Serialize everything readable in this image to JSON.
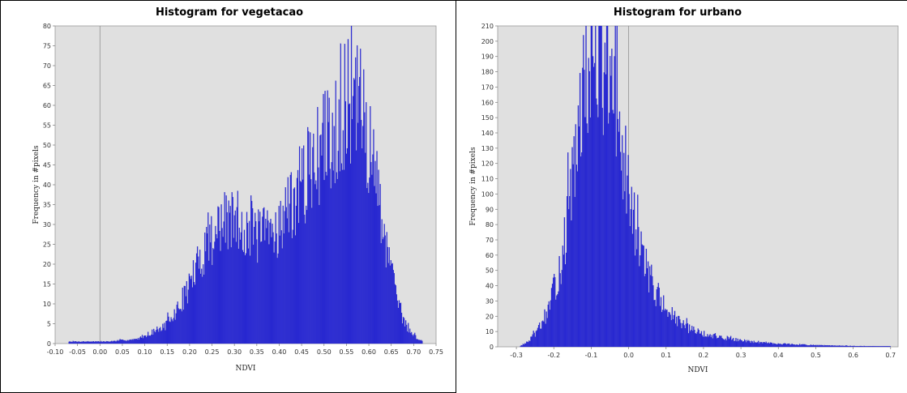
{
  "chart_data": [
    {
      "type": "bar",
      "title": "Histogram for vegetacao",
      "xlabel": "NDVI",
      "ylabel": "Frequency in #pixels",
      "xlim": [
        -0.1,
        0.75
      ],
      "ylim": [
        0,
        80
      ],
      "xticks": [
        -0.1,
        -0.05,
        0.0,
        0.05,
        0.1,
        0.15,
        0.2,
        0.25,
        0.3,
        0.35,
        0.4,
        0.45,
        0.5,
        0.55,
        0.6,
        0.65,
        0.7,
        0.75
      ],
      "xtick_labels": [
        "-0.10",
        "-0.05",
        "0.00",
        "0.05",
        "0.10",
        "0.15",
        "0.20",
        "0.25",
        "0.30",
        "0.35",
        "0.40",
        "0.45",
        "0.50",
        "0.55",
        "0.60",
        "0.65",
        "0.70",
        "0.75"
      ],
      "yticks": [
        0,
        5,
        10,
        15,
        20,
        25,
        30,
        35,
        40,
        45,
        50,
        55,
        60,
        65,
        70,
        75,
        80
      ],
      "zero_line_x": 0.0,
      "grid": false,
      "bar_color": "#2b2bd9",
      "background_color": "#e0e0e0",
      "profile": {
        "x": [
          -0.07,
          -0.04,
          -0.01,
          0.02,
          0.05,
          0.08,
          0.1,
          0.12,
          0.14,
          0.16,
          0.18,
          0.2,
          0.22,
          0.24,
          0.26,
          0.28,
          0.3,
          0.32,
          0.34,
          0.36,
          0.38,
          0.4,
          0.42,
          0.44,
          0.46,
          0.48,
          0.5,
          0.52,
          0.54,
          0.56,
          0.58,
          0.6,
          0.62,
          0.64,
          0.66,
          0.68,
          0.7,
          0.72
        ],
        "y": [
          0.5,
          0.5,
          0.5,
          0.5,
          0.8,
          1,
          2,
          3,
          4,
          6,
          10,
          15,
          20,
          26,
          28,
          30,
          31,
          30,
          28,
          27,
          28,
          30,
          33,
          38,
          42,
          46,
          50,
          54,
          58,
          61,
          59,
          50,
          38,
          25,
          12,
          5,
          2,
          0.5
        ]
      }
    },
    {
      "type": "bar",
      "title": "Histogram for urbano",
      "xlabel": "NDVI",
      "ylabel": "Frequency in #pixels",
      "xlim": [
        -0.35,
        0.72
      ],
      "ylim": [
        0,
        210
      ],
      "xticks": [
        -0.3,
        -0.2,
        -0.1,
        0.0,
        0.1,
        0.2,
        0.3,
        0.4,
        0.5,
        0.6,
        0.7
      ],
      "xtick_labels": [
        "-0.3",
        "-0.2",
        "-0.1",
        "0.0",
        "0.1",
        "0.2",
        "0.3",
        "0.4",
        "0.5",
        "0.6",
        "0.7"
      ],
      "yticks": [
        0,
        10,
        20,
        30,
        40,
        50,
        60,
        70,
        80,
        90,
        100,
        110,
        120,
        130,
        140,
        150,
        160,
        170,
        180,
        190,
        200,
        210
      ],
      "zero_line_x": 0.0,
      "grid": false,
      "bar_color": "#2b2bd9",
      "background_color": "#e0e0e0",
      "profile": {
        "x": [
          -0.29,
          -0.27,
          -0.25,
          -0.23,
          -0.21,
          -0.19,
          -0.17,
          -0.15,
          -0.13,
          -0.11,
          -0.09,
          -0.08,
          -0.07,
          -0.05,
          -0.03,
          -0.01,
          0.01,
          0.03,
          0.05,
          0.07,
          0.09,
          0.11,
          0.13,
          0.15,
          0.18,
          0.21,
          0.25,
          0.3,
          0.35,
          0.4,
          0.5,
          0.6,
          0.7
        ],
        "y": [
          0.5,
          3,
          8,
          16,
          28,
          45,
          70,
          105,
          145,
          178,
          195,
          198,
          190,
          170,
          140,
          110,
          85,
          65,
          50,
          38,
          28,
          22,
          17,
          13,
          10,
          8,
          6,
          4,
          3,
          2,
          1,
          0.5,
          0.3
        ]
      }
    }
  ]
}
